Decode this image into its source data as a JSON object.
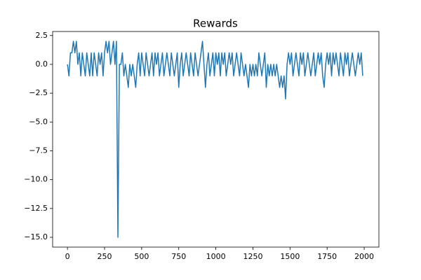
{
  "chart_data": {
    "type": "line",
    "title": "Rewards",
    "color": "#1f77b4",
    "x": [
      0,
      10,
      20,
      30,
      40,
      50,
      60,
      70,
      80,
      90,
      100,
      110,
      120,
      130,
      140,
      150,
      160,
      170,
      180,
      190,
      200,
      210,
      220,
      230,
      240,
      250,
      260,
      270,
      280,
      290,
      300,
      310,
      320,
      330,
      340,
      350,
      360,
      370,
      380,
      390,
      400,
      410,
      420,
      430,
      440,
      450,
      460,
      470,
      480,
      490,
      500,
      510,
      520,
      530,
      540,
      550,
      560,
      570,
      580,
      590,
      600,
      610,
      620,
      630,
      640,
      650,
      660,
      670,
      680,
      690,
      700,
      710,
      720,
      730,
      740,
      750,
      760,
      770,
      780,
      790,
      800,
      810,
      820,
      830,
      840,
      850,
      860,
      870,
      880,
      890,
      900,
      910,
      920,
      930,
      940,
      950,
      960,
      970,
      980,
      990,
      1000,
      1010,
      1020,
      1030,
      1040,
      1050,
      1060,
      1070,
      1080,
      1090,
      1100,
      1110,
      1120,
      1130,
      1140,
      1150,
      1160,
      1170,
      1180,
      1190,
      1200,
      1210,
      1220,
      1230,
      1240,
      1250,
      1260,
      1270,
      1280,
      1290,
      1300,
      1310,
      1320,
      1330,
      1340,
      1350,
      1360,
      1370,
      1380,
      1390,
      1400,
      1410,
      1420,
      1430,
      1440,
      1450,
      1460,
      1470,
      1480,
      1490,
      1500,
      1510,
      1520,
      1530,
      1540,
      1550,
      1560,
      1570,
      1580,
      1590,
      1600,
      1610,
      1620,
      1630,
      1640,
      1650,
      1660,
      1670,
      1680,
      1690,
      1700,
      1710,
      1720,
      1730,
      1740,
      1750,
      1760,
      1770,
      1780,
      1790,
      1800,
      1810,
      1820,
      1830,
      1840,
      1850,
      1860,
      1870,
      1880,
      1890,
      1900,
      1910,
      1920,
      1930,
      1940,
      1950,
      1960,
      1970,
      1980,
      1990
    ],
    "values": [
      0,
      -1,
      1,
      1,
      2,
      1,
      2,
      0,
      1,
      -1,
      1,
      0,
      -1,
      1,
      0,
      -1,
      1,
      -1,
      1,
      0,
      -1,
      1,
      0,
      1,
      -1,
      1,
      2,
      1,
      2,
      0,
      1,
      2,
      0,
      2,
      -15,
      0,
      0,
      1,
      -1,
      0,
      -1,
      -2,
      0,
      -1,
      0,
      -1,
      -2,
      0,
      1,
      -1,
      1,
      0,
      -1,
      1,
      0,
      -1,
      0,
      1,
      -1,
      1,
      0,
      1,
      -1,
      0,
      1,
      -1,
      0,
      1,
      0,
      -1,
      1,
      0,
      -1,
      0,
      1,
      -2,
      0,
      1,
      -1,
      0,
      1,
      0,
      -1,
      1,
      0,
      -1,
      1,
      0,
      -1,
      0,
      1,
      2,
      0,
      -2,
      0,
      1,
      -1,
      0,
      1,
      -1,
      1,
      0,
      1,
      -1,
      1,
      0,
      1,
      -1,
      0,
      1,
      0,
      1,
      -1,
      0,
      1,
      0,
      -1,
      1,
      0,
      -1,
      0,
      -1,
      -2,
      0,
      -1,
      0,
      -1,
      0,
      -1,
      1,
      0,
      -1,
      0,
      1,
      -2,
      0,
      -1,
      0,
      -1,
      0,
      -1,
      0,
      -1,
      -2,
      -1,
      -2,
      -1,
      -3,
      0,
      1,
      0,
      1,
      -1,
      0,
      1,
      0,
      -1,
      1,
      0,
      1,
      -1,
      0,
      1,
      0,
      -1,
      0,
      1,
      -1,
      0,
      1,
      0,
      1,
      -1,
      -2,
      0,
      1,
      0,
      1,
      -1,
      1,
      0,
      1,
      0,
      -1,
      1,
      0,
      -1,
      1,
      0,
      1,
      -1,
      0,
      1,
      0,
      -1,
      0,
      1,
      0,
      1,
      -1
    ],
    "xlim": [
      -100,
      2099
    ],
    "ylim": [
      -15.85,
      2.85
    ],
    "xticks": [
      0,
      250,
      500,
      750,
      1000,
      1250,
      1500,
      1750,
      2000
    ],
    "yticks": [
      {
        "value": -15,
        "label": "−15.0"
      },
      {
        "value": -12.5,
        "label": "−12.5"
      },
      {
        "value": -10,
        "label": "−10.0"
      },
      {
        "value": -7.5,
        "label": "−7.5"
      },
      {
        "value": -5,
        "label": "−5.0"
      },
      {
        "value": -2.5,
        "label": "−2.5"
      },
      {
        "value": 0,
        "label": "0.0"
      },
      2.5
    ]
  }
}
